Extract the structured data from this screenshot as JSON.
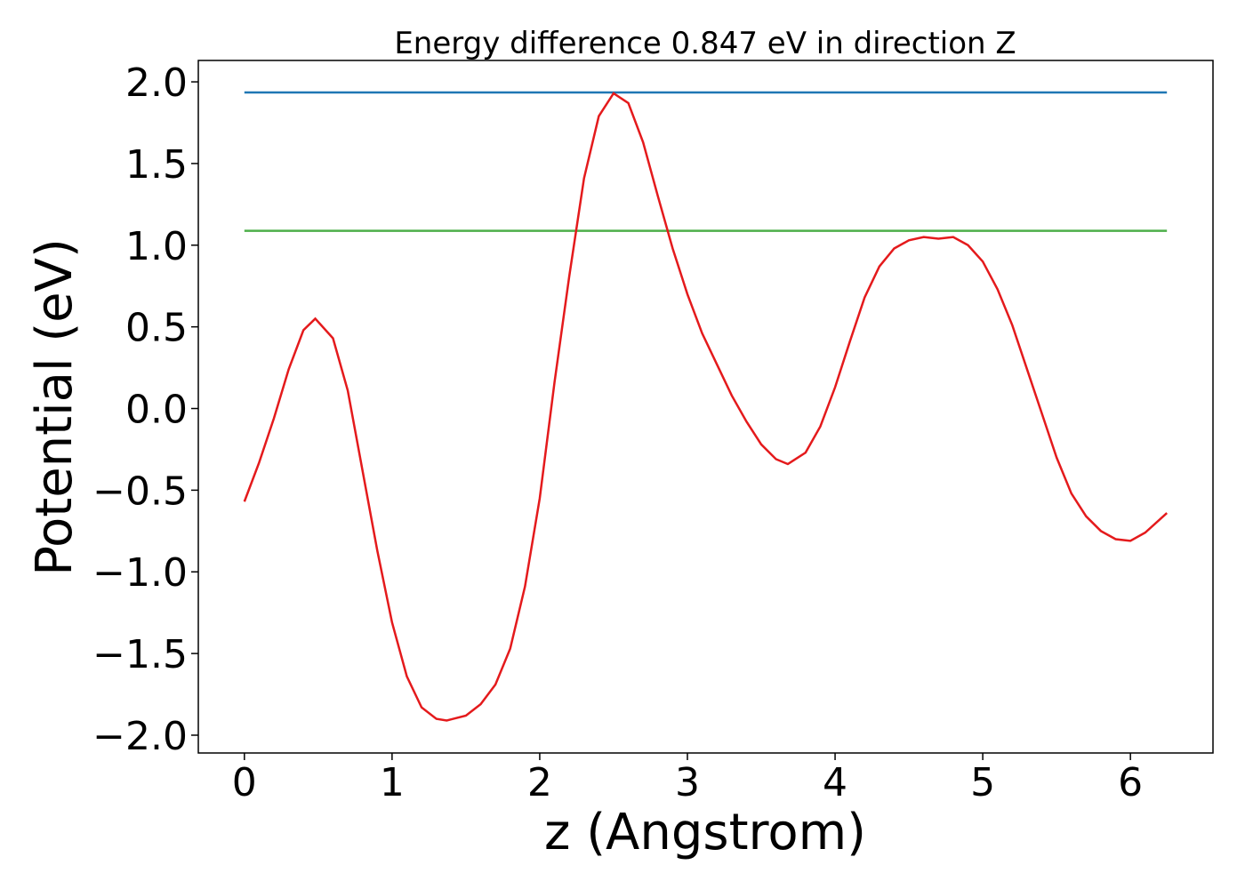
{
  "chart_data": {
    "type": "line",
    "title": "Energy difference 0.847 eV in direction Z",
    "x_label": "z (Angstrom)",
    "y_label": "Potential (eV)",
    "xlim": [
      -0.312,
      6.559
    ],
    "ylim": [
      -2.109,
      2.131
    ],
    "xticks": [
      0,
      1,
      2,
      3,
      4,
      5,
      6
    ],
    "yticks": [
      {
        "value": -2.0,
        "label": "−2.0"
      },
      {
        "value": -1.5,
        "label": "−1.5"
      },
      {
        "value": -1.0,
        "label": "−1.0"
      },
      {
        "value": -0.5,
        "label": "−0.5"
      },
      {
        "value": 0.0,
        "label": "0.0"
      },
      {
        "value": 0.5,
        "label": "0.5"
      },
      {
        "value": 1.0,
        "label": "1.0"
      },
      {
        "value": 1.5,
        "label": "1.5"
      },
      {
        "value": 2.0,
        "label": "2.0"
      }
    ],
    "grid": false,
    "series": [
      {
        "color": "#1f77b4",
        "x": [
          0,
          6.247
        ],
        "values": [
          1.935,
          1.935
        ]
      },
      {
        "color": "#4daf4a",
        "x": [
          0,
          6.247
        ],
        "values": [
          1.088,
          1.088
        ]
      },
      {
        "color": "#e41a1c",
        "x": [
          0,
          0.1,
          0.2,
          0.3,
          0.4,
          0.48,
          0.6,
          0.7,
          0.8,
          0.9,
          1.0,
          1.1,
          1.2,
          1.3,
          1.37,
          1.5,
          1.6,
          1.7,
          1.8,
          1.9,
          2.0,
          2.1,
          2.2,
          2.3,
          2.4,
          2.5,
          2.6,
          2.7,
          2.8,
          2.9,
          3.0,
          3.1,
          3.2,
          3.3,
          3.4,
          3.5,
          3.6,
          3.68,
          3.8,
          3.9,
          4.0,
          4.1,
          4.2,
          4.3,
          4.4,
          4.5,
          4.6,
          4.7,
          4.8,
          4.9,
          5.0,
          5.1,
          5.2,
          5.3,
          5.4,
          5.5,
          5.6,
          5.7,
          5.8,
          5.9,
          6.0,
          6.1,
          6.247
        ],
        "values": [
          -0.57,
          -0.33,
          -0.06,
          0.24,
          0.48,
          0.55,
          0.43,
          0.11,
          -0.38,
          -0.87,
          -1.31,
          -1.64,
          -1.83,
          -1.9,
          -1.91,
          -1.88,
          -1.81,
          -1.69,
          -1.47,
          -1.09,
          -0.55,
          0.16,
          0.81,
          1.41,
          1.79,
          1.93,
          1.87,
          1.63,
          1.3,
          0.98,
          0.7,
          0.46,
          0.27,
          0.08,
          -0.08,
          -0.22,
          -0.31,
          -0.34,
          -0.27,
          -0.11,
          0.13,
          0.41,
          0.68,
          0.87,
          0.98,
          1.03,
          1.05,
          1.04,
          1.05,
          1.0,
          0.9,
          0.73,
          0.51,
          0.24,
          -0.03,
          -0.3,
          -0.52,
          -0.66,
          -0.75,
          -0.8,
          -0.81,
          -0.76,
          -0.64
        ]
      }
    ]
  }
}
